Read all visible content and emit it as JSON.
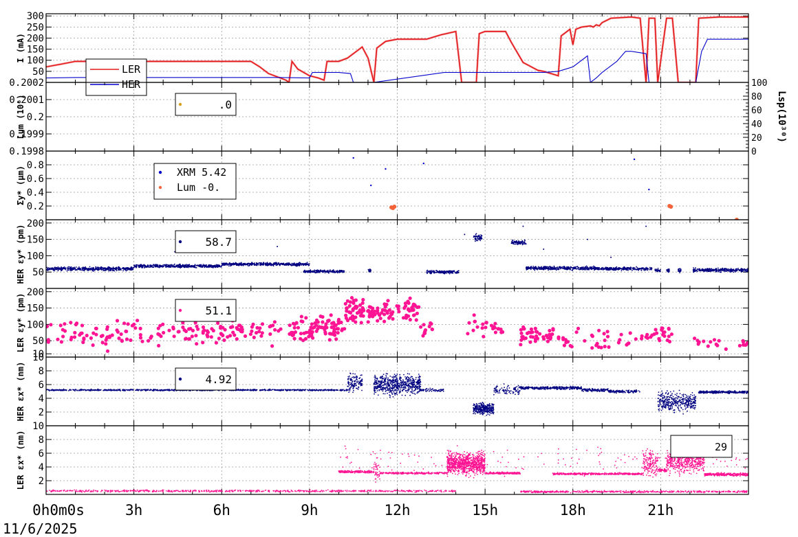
{
  "chart_data": {
    "type": "scatter",
    "x_axis": {
      "tick_labels": [
        "0h0m0s",
        "3h",
        "6h",
        "9h",
        "12h",
        "15h",
        "18h",
        "21h"
      ],
      "date": "11/6/2025",
      "range_hours": [
        0,
        24
      ]
    },
    "panels": [
      {
        "id": "current",
        "ylabel": "I (mA)",
        "ylim": [
          0,
          310
        ],
        "yticks": [
          "300",
          "250",
          "200",
          "150",
          "100",
          "50"
        ],
        "legend": [
          {
            "label": "LER",
            "color": "#e41a1c"
          },
          {
            "label": "HER",
            "color": "#0000cc"
          }
        ],
        "series": [
          {
            "name": "LER",
            "color": "#e41a1c",
            "points": [
              [
                0,
                70
              ],
              [
                0.5,
                82
              ],
              [
                1,
                95
              ],
              [
                2,
                95
              ],
              [
                3,
                95
              ],
              [
                4,
                95
              ],
              [
                5,
                95
              ],
              [
                6,
                95
              ],
              [
                7,
                95
              ],
              [
                7.3,
                70
              ],
              [
                7.6,
                40
              ],
              [
                8,
                20
              ],
              [
                8.2,
                10
              ],
              [
                8.3,
                0
              ],
              [
                8.4,
                95
              ],
              [
                8.6,
                60
              ],
              [
                9,
                30
              ],
              [
                9.3,
                20
              ],
              [
                9.5,
                10
              ],
              [
                9.6,
                95
              ],
              [
                10,
                95
              ],
              [
                10.3,
                110
              ],
              [
                10.5,
                130
              ],
              [
                10.8,
                160
              ],
              [
                11,
                110
              ],
              [
                11.2,
                0
              ],
              [
                11.3,
                155
              ],
              [
                11.6,
                185
              ],
              [
                12,
                195
              ],
              [
                13,
                195
              ],
              [
                13.5,
                215
              ],
              [
                14,
                230
              ],
              [
                14.2,
                0
              ],
              [
                14.5,
                0
              ],
              [
                14.7,
                0
              ],
              [
                14.8,
                220
              ],
              [
                15,
                230
              ],
              [
                15.7,
                230
              ],
              [
                15.9,
                180
              ],
              [
                16.3,
                90
              ],
              [
                16.8,
                55
              ],
              [
                17,
                50
              ],
              [
                17.5,
                30
              ],
              [
                17.6,
                210
              ],
              [
                17.9,
                240
              ],
              [
                18,
                170
              ],
              [
                18.1,
                240
              ],
              [
                18.3,
                250
              ],
              [
                18.6,
                255
              ],
              [
                18.7,
                250
              ],
              [
                18.8,
                260
              ],
              [
                18.9,
                255
              ],
              [
                19,
                270
              ],
              [
                19.3,
                290
              ],
              [
                20,
                295
              ],
              [
                20.3,
                290
              ],
              [
                20.5,
                0
              ],
              [
                20.6,
                290
              ],
              [
                20.8,
                290
              ],
              [
                20.9,
                0
              ],
              [
                21.2,
                290
              ],
              [
                21.4,
                290
              ],
              [
                21.6,
                0
              ],
              [
                22.2,
                0
              ],
              [
                22.3,
                290
              ],
              [
                23,
                295
              ],
              [
                24,
                295
              ]
            ]
          },
          {
            "name": "HER",
            "color": "#0000cc",
            "points": [
              [
                0,
                20
              ],
              [
                1,
                22
              ],
              [
                2,
                22
              ],
              [
                3,
                22
              ],
              [
                4,
                22
              ],
              [
                5,
                22
              ],
              [
                6,
                22
              ],
              [
                7,
                22
              ],
              [
                8,
                22
              ],
              [
                9,
                20
              ],
              [
                9.1,
                45
              ],
              [
                10,
                45
              ],
              [
                10.4,
                40
              ],
              [
                10.5,
                0
              ],
              [
                11.2,
                0
              ],
              [
                13.6,
                45
              ],
              [
                14,
                45
              ],
              [
                15,
                45
              ],
              [
                16,
                45
              ],
              [
                17,
                45
              ],
              [
                17.5,
                50
              ],
              [
                18,
                70
              ],
              [
                18.5,
                120
              ],
              [
                18.6,
                0
              ],
              [
                18.8,
                20
              ],
              [
                19,
                45
              ],
              [
                19.5,
                95
              ],
              [
                19.8,
                140
              ],
              [
                20,
                140
              ],
              [
                20.5,
                130
              ],
              [
                20.6,
                0
              ],
              [
                21,
                0
              ],
              [
                21.5,
                0
              ],
              [
                22.2,
                0
              ],
              [
                22.4,
                140
              ],
              [
                22.6,
                195
              ],
              [
                24,
                195
              ]
            ]
          }
        ]
      },
      {
        "id": "luminosity",
        "ylabel": "Lum (10⁶)",
        "yticks": [
          "0.2002",
          "0.2001",
          "0.2",
          "0.1999",
          "0.1998"
        ],
        "ylim": [
          0.1998,
          0.2002
        ],
        "right_ylabel": "Lsp(10³⁰)",
        "right_yticks": [
          "100",
          "80",
          "60",
          "40",
          "20",
          "0"
        ],
        "legend": [
          {
            "label": ".0",
            "color": "#d4a017"
          }
        ],
        "series": []
      },
      {
        "id": "sigma",
        "ylabel": "Σy* (μm)",
        "ylim": [
          0,
          1.0
        ],
        "yticks": [
          "0.8",
          "0.6",
          "0.4",
          "0.2"
        ],
        "legend": [
          {
            "label": "XRM 5.42",
            "color": "#0000cc"
          },
          {
            "label": "Lum -0.",
            "color": "#f4623a"
          }
        ],
        "series": [
          {
            "name": "XRM",
            "color": "#0000cc",
            "points": [
              [
                10.5,
                0.9
              ],
              [
                11.1,
                0.5
              ],
              [
                11.6,
                0.74
              ],
              [
                12.9,
                0.82
              ],
              [
                20.1,
                0.88
              ],
              [
                20.6,
                0.44
              ]
            ]
          },
          {
            "name": "Lum",
            "color": "#f4623a",
            "points": [
              [
                11.8,
                0.18
              ],
              [
                11.85,
                0.17
              ],
              [
                11.9,
                0.19
              ],
              [
                21.3,
                0.2
              ],
              [
                21.35,
                0.19
              ],
              [
                23.6,
                0.0
              ]
            ]
          }
        ]
      },
      {
        "id": "her_ey",
        "ylabel": "HER εy* (pm)",
        "ylim": [
          0,
          210
        ],
        "yticks": [
          "200",
          "150",
          "100",
          "50"
        ],
        "legend": [
          {
            "label": "58.7",
            "color": "#000080"
          }
        ],
        "color": "#000080"
      },
      {
        "id": "ler_ey",
        "ylabel": "LER εy* (pm)",
        "ylim": [
          0,
          210
        ],
        "yticks": [
          "200",
          "150",
          "100",
          "50",
          "10"
        ],
        "legend": [
          {
            "label": "51.1",
            "color": "#ff1493"
          }
        ],
        "color": "#ff1493"
      },
      {
        "id": "her_ex",
        "ylabel": "HER εx* (nm)",
        "ylim": [
          0,
          10
        ],
        "yticks": [
          "10",
          "8",
          "6",
          "4",
          "2"
        ],
        "legend": [
          {
            "label": "4.92",
            "color": "#000080"
          }
        ],
        "color": "#000080"
      },
      {
        "id": "ler_ex",
        "ylabel": "LER εx* (nm)",
        "ylim": [
          0,
          10
        ],
        "yticks": [
          "10",
          "8",
          "6",
          "4",
          "2"
        ],
        "legend": [
          {
            "label": "29",
            "color": "#ff1493"
          }
        ],
        "color": "#ff1493"
      }
    ]
  }
}
